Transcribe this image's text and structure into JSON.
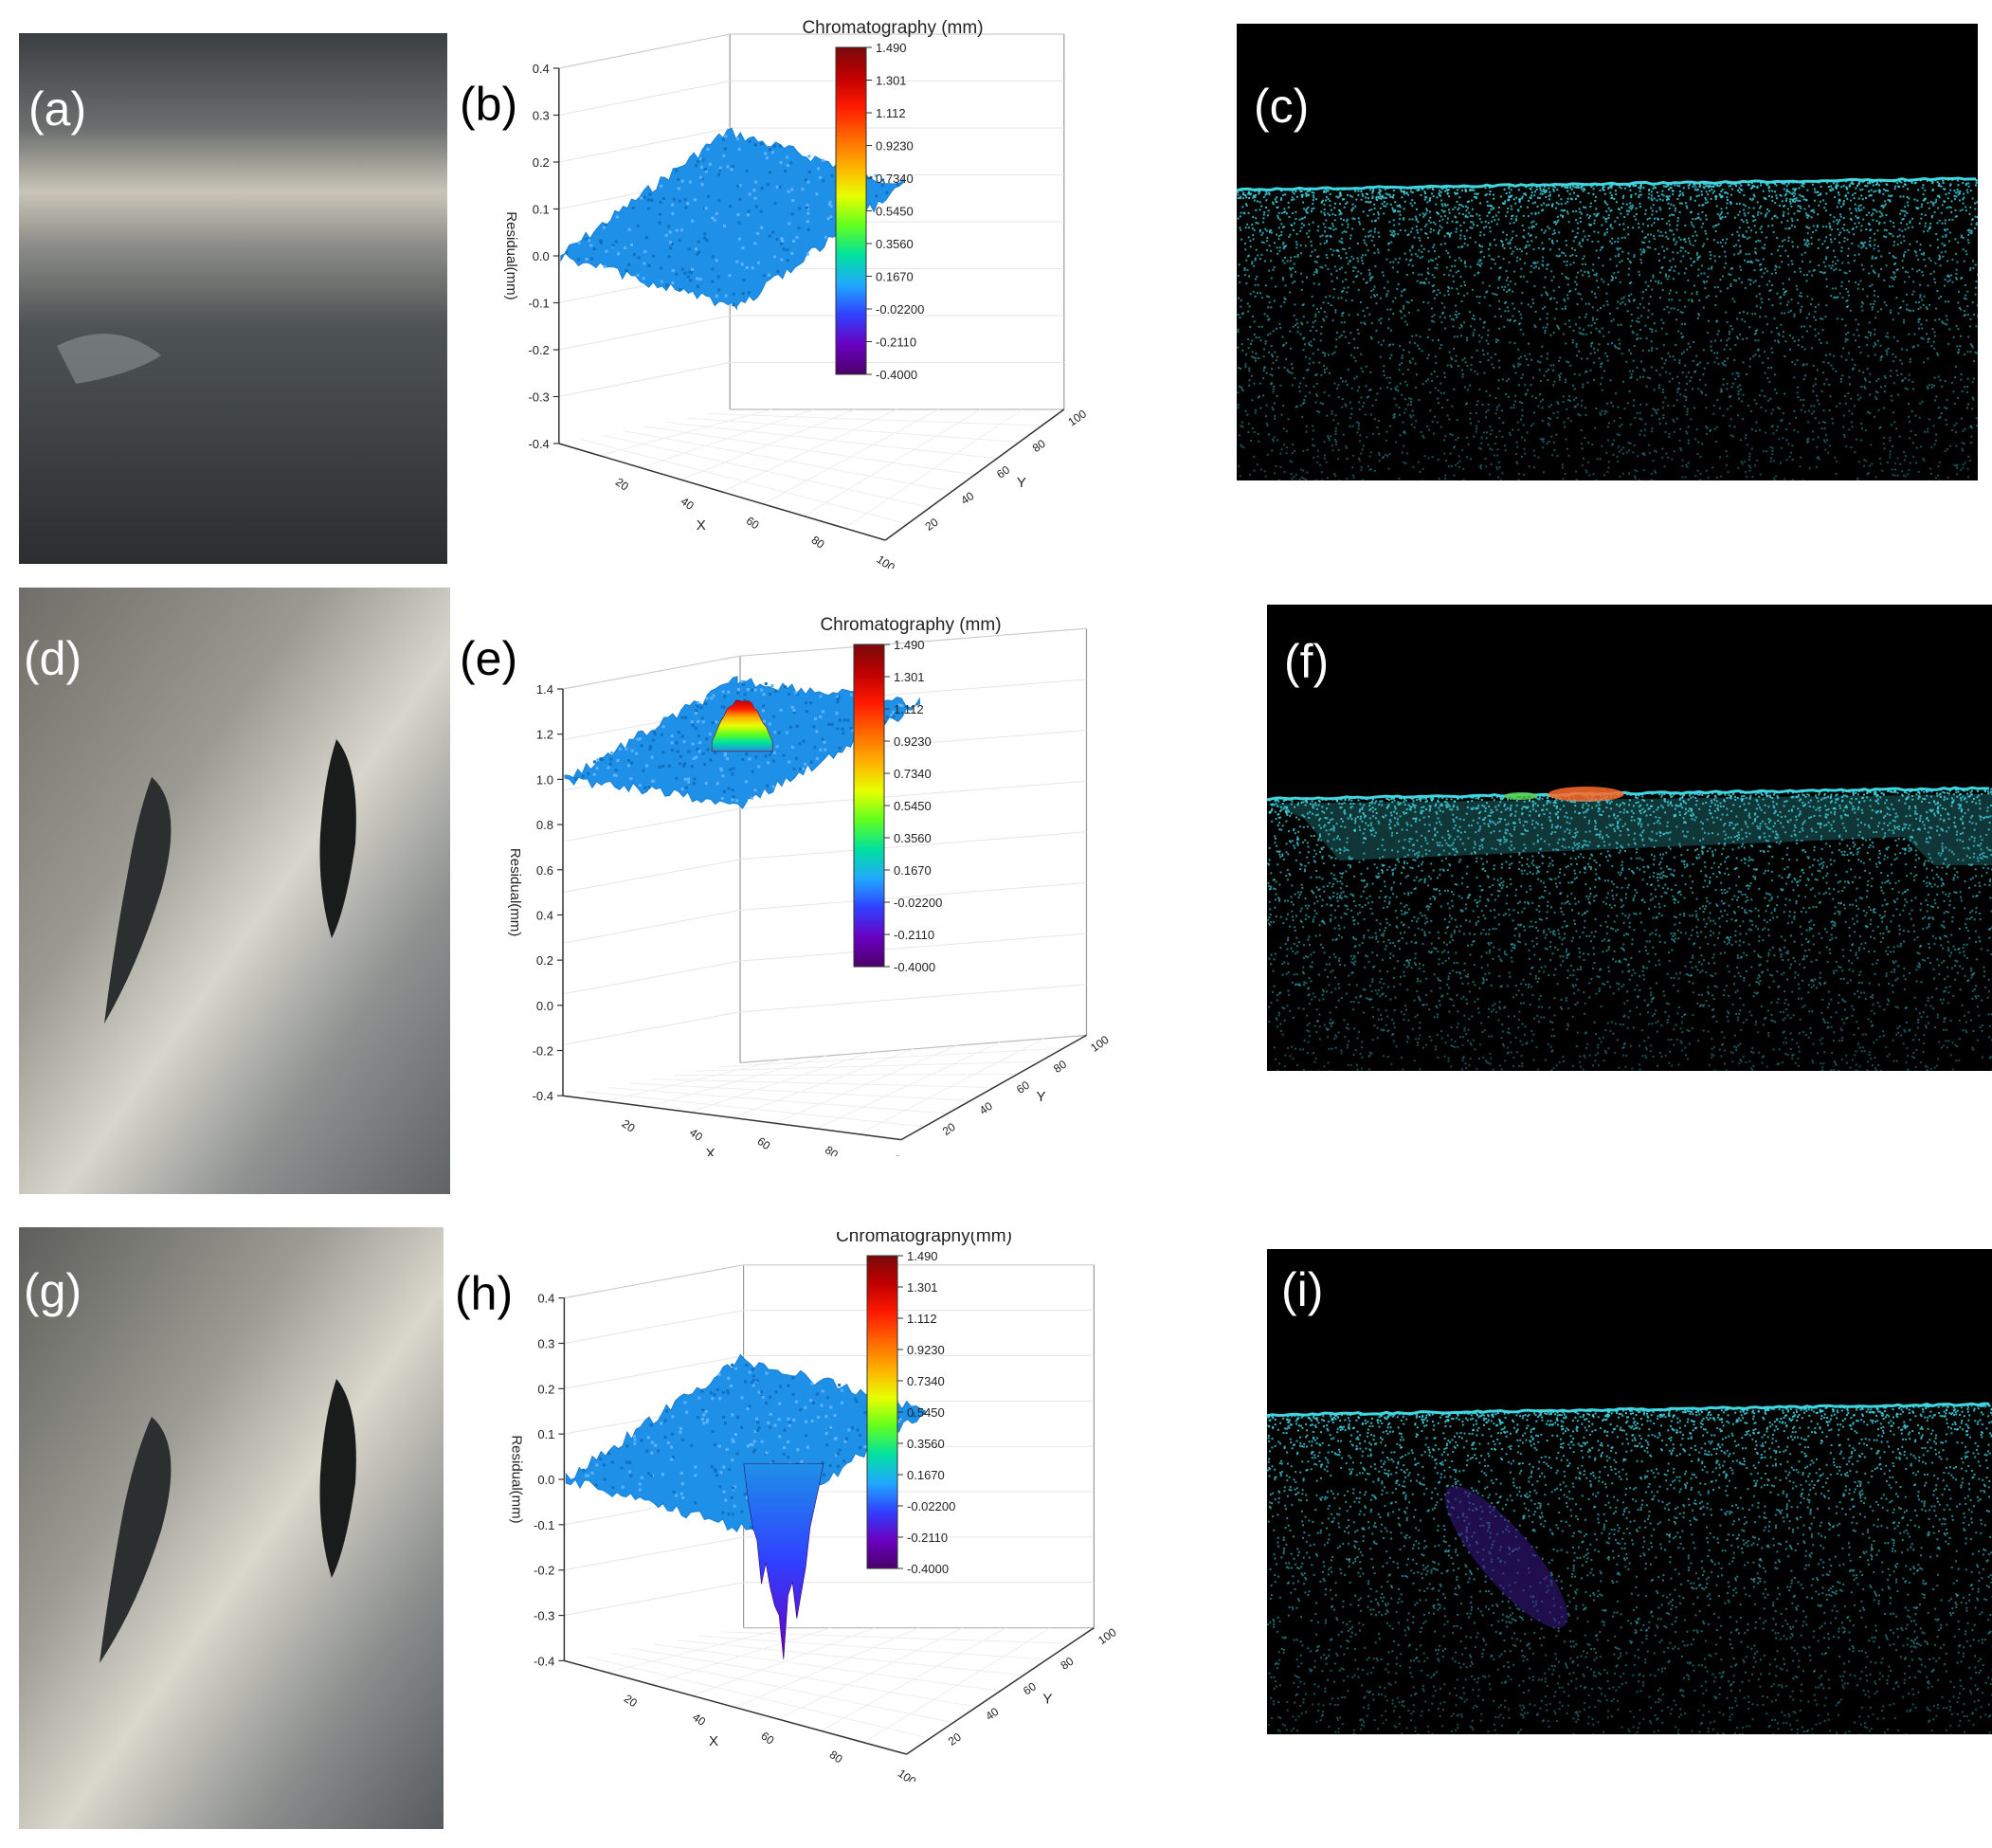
{
  "figure": {
    "rows": [
      {
        "photo_label": "(a)",
        "plot_label": "(b)",
        "cloud_label": "(c)",
        "defect": "none",
        "colorbar_title": "Chromatography (mm)"
      },
      {
        "photo_label": "(d)",
        "plot_label": "(e)",
        "cloud_label": "(f)",
        "defect": "bump",
        "colorbar_title": "Chromatography (mm)"
      },
      {
        "photo_label": "(g)",
        "plot_label": "(h)",
        "cloud_label": "(i)",
        "defect": "dent",
        "colorbar_title": "Chromatography(mm)"
      }
    ],
    "colorbar_ticks": [
      "1.490",
      "1.301",
      "1.112",
      "0.9230",
      "0.7340",
      "0.5450",
      "0.3560",
      "0.1670",
      "-0.02200",
      "-0.2110",
      "-0.4000"
    ],
    "colorbar_colors": [
      "#7a0a0a",
      "#c00000",
      "#ff1a00",
      "#ff6600",
      "#ffb000",
      "#e8ff00",
      "#60ff20",
      "#00e0a0",
      "#20a8ff",
      "#3040ff",
      "#6a00c0",
      "#4a006a"
    ],
    "surface_color": "#1e90e8",
    "cloud_color": "#3fd6e0",
    "axis_labels": {
      "x": "X",
      "y": "Y",
      "z": "Residual(mm)"
    },
    "z_ticks_small": [
      "0.4",
      "0.3",
      "0.2",
      "0.1",
      "0.0",
      "-0.1",
      "-0.2",
      "-0.3",
      "-0.4"
    ],
    "z_ticks_large": [
      "1.4",
      "1.2",
      "1.0",
      "0.8",
      "0.6",
      "0.4",
      "0.2",
      "0.0",
      "-0.2",
      "-0.4"
    ],
    "x_ticks": [
      "20",
      "40",
      "60",
      "80",
      "100"
    ],
    "y_ticks": [
      "20",
      "40",
      "60",
      "80",
      "100"
    ]
  }
}
